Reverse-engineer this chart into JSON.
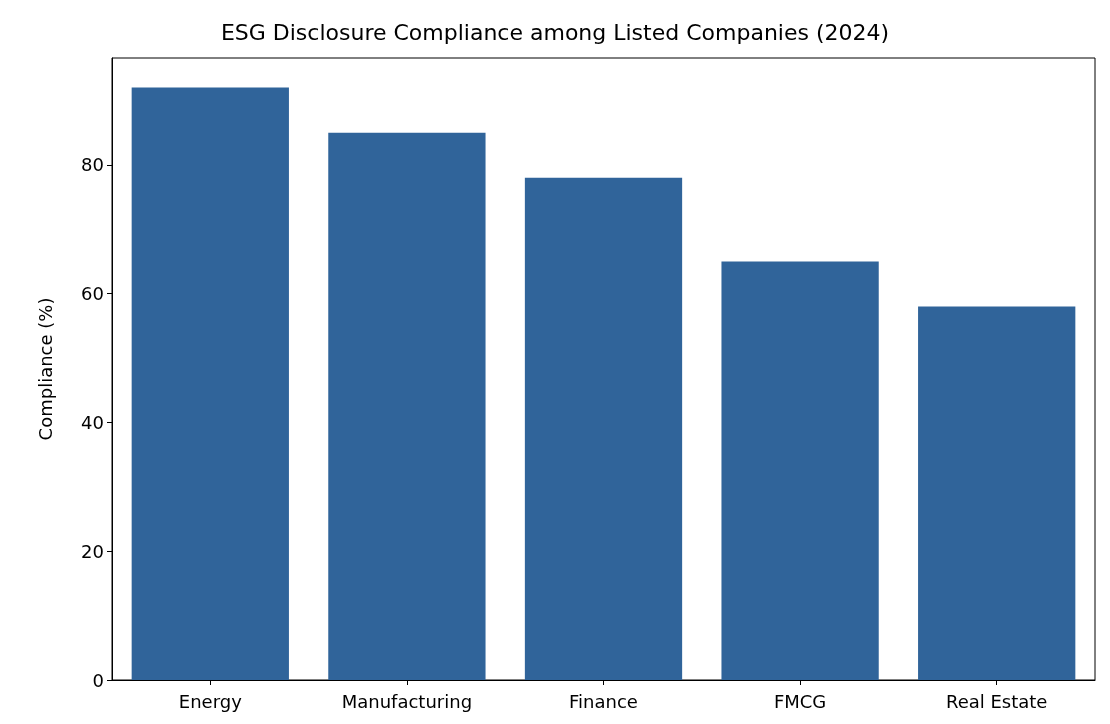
{
  "chart_data": {
    "type": "bar",
    "title": "ESG Disclosure Compliance among Listed Companies (2024)",
    "ylabel": "Compliance (%)",
    "categories": [
      "Energy",
      "Manufacturing",
      "Finance",
      "FMCG",
      "Real Estate"
    ],
    "values": [
      92,
      85,
      78,
      65,
      58
    ],
    "color": "#30649a",
    "ylim": [
      0,
      96.6
    ],
    "yticks": [
      0,
      20,
      40,
      60,
      80
    ],
    "grid": false
  }
}
